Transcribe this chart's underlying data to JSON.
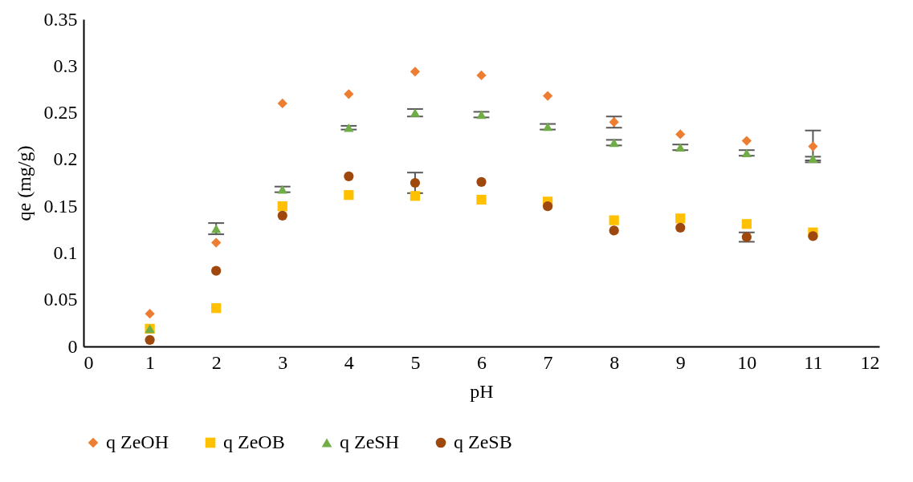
{
  "chart_data": {
    "type": "scatter",
    "xlabel": "pH",
    "ylabel": "qe (mg/g)",
    "x": [
      1,
      2,
      3,
      4,
      5,
      6,
      7,
      8,
      9,
      10,
      11
    ],
    "xlim": [
      0,
      12
    ],
    "xticks": [
      0,
      1,
      2,
      3,
      4,
      5,
      6,
      7,
      8,
      9,
      10,
      11,
      12
    ],
    "ylim": [
      0,
      0.35
    ],
    "yticks": [
      0,
      0.05,
      0.1,
      0.15,
      0.2,
      0.25,
      0.3,
      0.35
    ],
    "grid": false,
    "legend": "bottom",
    "series": [
      {
        "name": "q ZeOH",
        "color": "#ed7d31",
        "marker": "diamond",
        "values": [
          0.035,
          0.111,
          0.26,
          0.27,
          0.294,
          0.29,
          0.268,
          0.24,
          0.227,
          0.22,
          0.214
        ],
        "errors": [
          null,
          null,
          null,
          null,
          null,
          null,
          null,
          0.006,
          null,
          null,
          0.017
        ]
      },
      {
        "name": "q ZeOB",
        "color": "#ffc000",
        "marker": "square",
        "values": [
          0.019,
          0.041,
          0.15,
          0.162,
          0.161,
          0.157,
          0.155,
          0.135,
          0.137,
          0.131,
          0.122
        ],
        "errors": [
          null,
          null,
          null,
          null,
          null,
          null,
          null,
          null,
          null,
          null,
          null
        ]
      },
      {
        "name": "q ZeSH",
        "color": "#70ad47",
        "marker": "triangle",
        "values": [
          0.019,
          0.126,
          0.168,
          0.234,
          0.25,
          0.248,
          0.235,
          0.218,
          0.213,
          0.207,
          0.201
        ],
        "errors": [
          null,
          0.006,
          0.003,
          0.002,
          0.004,
          0.003,
          0.003,
          0.003,
          0.003,
          0.003,
          0.002
        ]
      },
      {
        "name": "q ZeSB",
        "color": "#9e480e",
        "marker": "circle",
        "values": [
          0.007,
          0.081,
          0.14,
          0.182,
          0.175,
          0.176,
          0.15,
          0.124,
          0.127,
          0.117,
          0.118
        ],
        "errors": [
          null,
          null,
          null,
          null,
          0.011,
          null,
          null,
          null,
          null,
          0.005,
          null
        ]
      }
    ]
  }
}
